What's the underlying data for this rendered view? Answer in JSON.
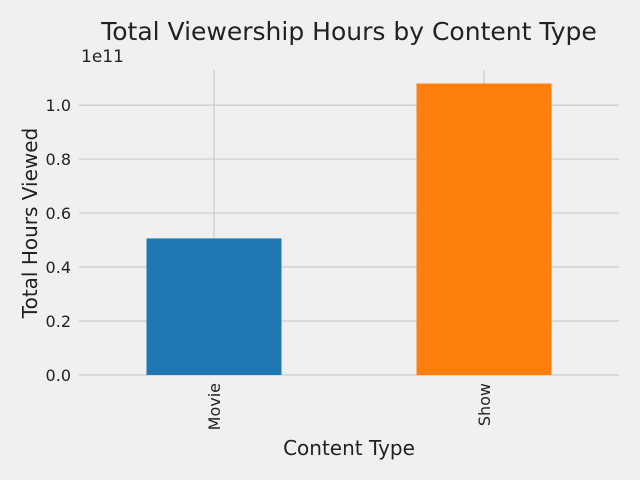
{
  "chart_data": {
    "type": "bar",
    "title": "Total Viewership Hours by Content Type",
    "xlabel": "Content Type",
    "ylabel": "Total Hours Viewed",
    "offset_label": "1e11",
    "categories": [
      "Movie",
      "Show"
    ],
    "values": [
      50600000000,
      108000000000
    ],
    "colors": [
      "#1f77b4",
      "#ff7f0e"
    ],
    "ylim": [
      0,
      113000000000
    ],
    "yticks": [
      0,
      20000000000,
      40000000000,
      60000000000,
      80000000000,
      100000000000
    ],
    "ytick_labels": [
      "0.0",
      "0.2",
      "0.4",
      "0.6",
      "0.8",
      "1.0"
    ],
    "grid": true,
    "background": "#f0f0f0",
    "grid_color": "#cbcbcb"
  }
}
